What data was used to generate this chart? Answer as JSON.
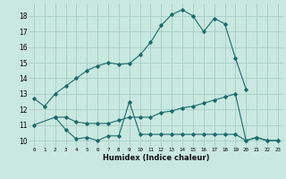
{
  "xlabel": "Humidex (Indice chaleur)",
  "background_color": "#c8e8e0",
  "grid_color": "#aaccc8",
  "line_color": "#1a6b6b",
  "x_ticks": [
    0,
    1,
    2,
    3,
    4,
    5,
    6,
    7,
    8,
    9,
    10,
    11,
    12,
    13,
    14,
    15,
    16,
    17,
    18,
    19,
    20,
    21,
    22,
    23
  ],
  "y_ticks": [
    10,
    11,
    12,
    13,
    14,
    15,
    16,
    17,
    18
  ],
  "ylim": [
    9.6,
    18.8
  ],
  "xlim": [
    -0.5,
    23.5
  ],
  "line1_x": [
    0,
    1,
    2,
    3,
    4,
    5,
    6,
    7,
    8,
    9,
    10,
    11,
    12,
    13,
    14,
    15,
    16,
    17,
    18,
    19,
    20
  ],
  "line1_y": [
    12.7,
    12.2,
    13.0,
    13.5,
    14.0,
    14.5,
    14.8,
    15.0,
    14.9,
    14.95,
    15.5,
    16.3,
    17.4,
    18.1,
    18.4,
    18.0,
    17.0,
    17.85,
    17.5,
    15.3,
    13.3
  ],
  "line2_x": [
    0,
    2,
    3,
    4,
    5,
    6,
    7,
    8,
    9,
    10,
    11,
    12,
    13,
    14,
    15,
    16,
    17,
    18,
    19,
    20,
    21,
    22,
    23
  ],
  "line2_y": [
    11.0,
    11.5,
    11.5,
    11.2,
    11.1,
    11.1,
    11.1,
    11.3,
    11.5,
    11.5,
    11.5,
    11.8,
    11.9,
    12.1,
    12.2,
    12.4,
    12.6,
    12.8,
    13.0,
    10.0,
    10.2,
    10.0,
    10.0
  ],
  "line3_x": [
    2,
    3,
    4,
    5,
    6,
    7,
    8,
    9,
    10,
    11,
    12,
    13,
    14,
    15,
    16,
    17,
    18,
    19,
    20,
    21,
    22,
    23
  ],
  "line3_y": [
    11.5,
    10.7,
    10.1,
    10.2,
    10.0,
    10.3,
    10.3,
    12.5,
    10.4,
    10.4,
    10.4,
    10.4,
    10.4,
    10.4,
    10.4,
    10.4,
    10.4,
    10.4,
    10.0,
    10.2,
    10.0,
    10.0
  ]
}
